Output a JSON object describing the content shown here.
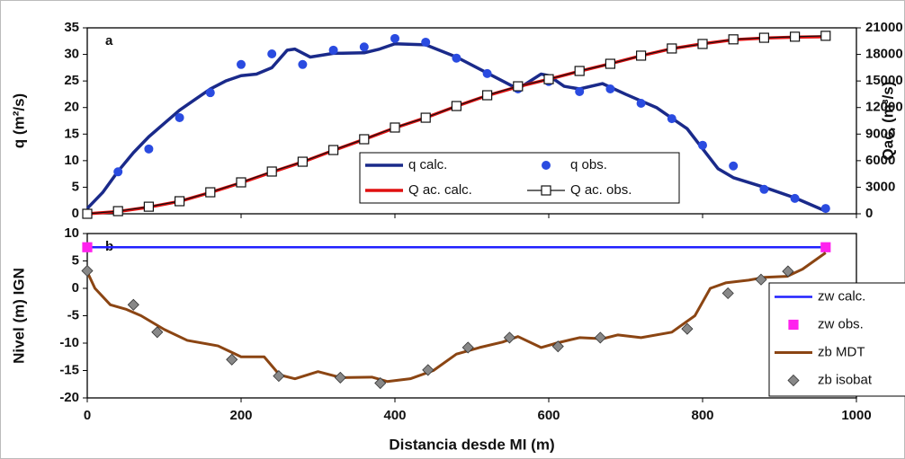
{
  "chart_data": [
    {
      "type": "line",
      "label": "a",
      "ylabel": "q (m²/s)",
      "y2label": "Qac, (m³/s)",
      "xlim": [
        0,
        1000
      ],
      "xticks": [
        0,
        200,
        400,
        600,
        800,
        1000
      ],
      "xtick_labels": false,
      "ylim": [
        0,
        35
      ],
      "yticks": [
        0,
        5,
        10,
        15,
        20,
        25,
        30,
        35
      ],
      "y2lim": [
        0,
        21000
      ],
      "y2ticks": [
        0,
        3000,
        6000,
        9000,
        12000,
        15000,
        18000,
        21000
      ],
      "legend": "lower center",
      "series": [
        {
          "name": "q calc.",
          "color": "#1a2a8a",
          "style": "line",
          "width": 3.5,
          "x": [
            0,
            20,
            40,
            60,
            80,
            100,
            120,
            140,
            160,
            180,
            200,
            220,
            240,
            260,
            270,
            290,
            320,
            360,
            380,
            400,
            440,
            480,
            520,
            560,
            590,
            600,
            620,
            640,
            670,
            700,
            740,
            780,
            820,
            840,
            880,
            920,
            960
          ],
          "values": [
            1,
            4,
            8,
            11.5,
            14.5,
            17,
            19.5,
            21.5,
            23.5,
            25,
            26,
            26.3,
            27.5,
            30.8,
            31,
            29.5,
            30.2,
            30.3,
            31,
            32,
            31.8,
            29.5,
            26.5,
            23.5,
            26.3,
            26,
            24,
            23.5,
            24.5,
            22.5,
            20,
            16,
            8.5,
            6.8,
            5,
            3,
            0.5
          ]
        },
        {
          "name": "q obs.",
          "color": "#2a4be0",
          "style": "markers",
          "marker": "circle",
          "x": [
            40,
            80,
            120,
            160,
            200,
            240,
            280,
            320,
            360,
            400,
            440,
            480,
            520,
            560,
            600,
            640,
            680,
            720,
            760,
            800,
            840,
            880,
            920,
            960
          ],
          "values": [
            7.9,
            12.2,
            18.1,
            22.8,
            28.1,
            30.1,
            28.1,
            30.8,
            31.4,
            33,
            32.3,
            29.3,
            26.4,
            23.5,
            24.9,
            23,
            23.5,
            20.8,
            17.9,
            12.9,
            9,
            4.6,
            2.9,
            1
          ]
        },
        {
          "name": "Q ac. calc.",
          "color": "#e01010",
          "style": "line",
          "width": 3.5,
          "axis": "y2",
          "x": [
            0,
            40,
            80,
            120,
            160,
            200,
            240,
            280,
            320,
            360,
            400,
            440,
            480,
            520,
            560,
            600,
            640,
            680,
            720,
            760,
            800,
            840,
            880,
            920,
            960
          ],
          "values": [
            0,
            250,
            750,
            1400,
            2400,
            3500,
            4700,
            5850,
            7150,
            8400,
            9700,
            10850,
            12150,
            13350,
            14350,
            15200,
            16100,
            16950,
            17850,
            18650,
            19200,
            19650,
            19850,
            19950,
            20000
          ]
        },
        {
          "name": "Q ac. obs.",
          "color": "#111111",
          "style": "line-markers",
          "marker": "square",
          "width": 1.2,
          "axis": "y2",
          "x": [
            0,
            40,
            80,
            120,
            160,
            200,
            240,
            280,
            320,
            360,
            400,
            440,
            480,
            520,
            560,
            600,
            640,
            680,
            720,
            760,
            800,
            840,
            880,
            920,
            960
          ],
          "values": [
            0,
            300,
            800,
            1420,
            2430,
            3550,
            4770,
            5880,
            7200,
            8420,
            9740,
            10850,
            12170,
            13390,
            14400,
            15200,
            16130,
            16940,
            17860,
            18670,
            19180,
            19700,
            19880,
            20000,
            20100
          ]
        }
      ]
    },
    {
      "type": "line",
      "label": "b",
      "ylabel": "Nivel (m) IGN",
      "xlabel": "Distancia desde MI (m)",
      "xlim": [
        0,
        1000
      ],
      "xticks": [
        0,
        200,
        400,
        600,
        800,
        1000
      ],
      "xtick_labels": true,
      "ylim": [
        -20,
        10
      ],
      "yticks": [
        -20,
        -15,
        -10,
        -5,
        0,
        5,
        10
      ],
      "legend": "center right",
      "series": [
        {
          "name": "zw calc.",
          "color": "#2020ff",
          "style": "line",
          "width": 2.5,
          "x": [
            0,
            960
          ],
          "values": [
            7.5,
            7.5
          ]
        },
        {
          "name": "zw obs.",
          "color": "#ff22ee",
          "style": "markers",
          "marker": "square",
          "x": [
            0,
            960
          ],
          "values": [
            7.5,
            7.5
          ]
        },
        {
          "name": "zb MDT",
          "color": "#8b4513",
          "style": "line",
          "width": 3,
          "x": [
            0,
            10,
            30,
            50,
            70,
            100,
            130,
            170,
            200,
            230,
            250,
            270,
            300,
            330,
            370,
            390,
            420,
            450,
            480,
            510,
            540,
            560,
            590,
            610,
            640,
            670,
            690,
            720,
            760,
            790,
            810,
            830,
            860,
            880,
            910,
            930,
            960
          ],
          "values": [
            3,
            0,
            -3,
            -3.8,
            -5,
            -7.5,
            -9.5,
            -10.5,
            -12.5,
            -12.5,
            -15.8,
            -16.5,
            -15.2,
            -16.3,
            -16.2,
            -17,
            -16.5,
            -15,
            -12,
            -10.8,
            -9.8,
            -8.8,
            -10.8,
            -10,
            -9,
            -9.2,
            -8.5,
            -9,
            -8,
            -5,
            0,
            1,
            1.5,
            2,
            2.2,
            3.5,
            6.5
          ]
        },
        {
          "name": "zb isobat",
          "color": "#888888",
          "style": "markers",
          "marker": "diamond",
          "x": [
            0,
            60,
            91,
            188,
            249,
            329,
            381,
            443,
            495,
            549,
            612,
            667,
            780,
            833,
            876,
            911
          ],
          "values": [
            3.2,
            -3,
            -8,
            -13,
            -16,
            -16.3,
            -17.3,
            -14.9,
            -10.8,
            -9,
            -10.6,
            -9,
            -7.4,
            -0.9,
            1.6,
            3.1
          ]
        }
      ]
    }
  ]
}
